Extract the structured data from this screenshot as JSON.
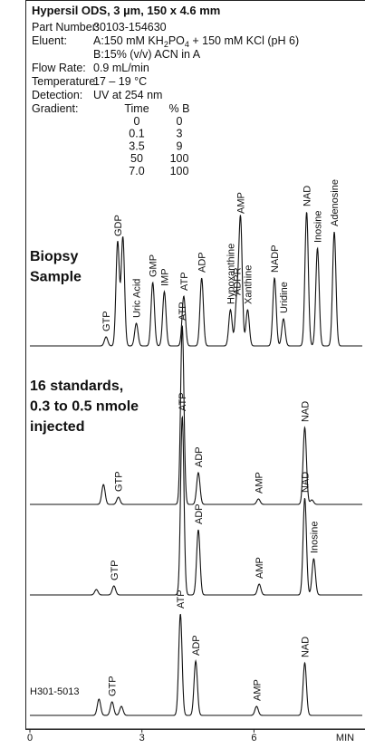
{
  "header": {
    "title": "Hypersil ODS, 3 µm, 150 x 4.6 mm",
    "fields": [
      {
        "label": "Part Number:",
        "lines": [
          [
            {
              "t": "30103-154630"
            }
          ]
        ]
      },
      {
        "label": "Eluent:",
        "lines": [
          [
            {
              "t": "A:150 mM KH"
            },
            {
              "t": "2",
              "sub": true
            },
            {
              "t": "PO"
            },
            {
              "t": "4",
              "sub": true
            },
            {
              "t": " + 150 mM KCl (pH 6)"
            }
          ],
          [
            {
              "t": "B:15% (v/v) ACN in A"
            }
          ]
        ]
      },
      {
        "label": "Flow Rate:",
        "lines": [
          [
            {
              "t": "0.9 mL/min"
            }
          ]
        ]
      },
      {
        "label": "Temperature:",
        "lines": [
          [
            {
              "t": "17 – 19 °C"
            }
          ]
        ]
      },
      {
        "label": "Detection:",
        "lines": [
          [
            {
              "t": "UV at 254 nm"
            }
          ]
        ]
      }
    ],
    "gradient": {
      "label": "Gradient:",
      "columns": [
        "Time",
        "% B"
      ],
      "rows": [
        [
          "0",
          "0"
        ],
        [
          "0.1",
          "3"
        ],
        [
          "3.5",
          "9"
        ],
        [
          "50",
          "100"
        ],
        [
          "7.0",
          "100"
        ]
      ]
    }
  },
  "chart_data": {
    "type": "chromatogram",
    "xlim": [
      0,
      8.9
    ],
    "xticks": [
      0,
      3,
      6
    ],
    "xlabel": "MIN",
    "ylim": [
      0,
      200
    ],
    "panels": [
      {
        "title_lines": [
          "Biopsy",
          "Sample"
        ],
        "peaks": [
          {
            "label": "GTP",
            "time": 2.04,
            "height": 10
          },
          {
            "label": "GDP",
            "time": 2.35,
            "height": 115
          },
          {
            "time": 2.49,
            "height": 120
          },
          {
            "label": "Uric Acid",
            "time": 2.85,
            "height": 25
          },
          {
            "label": "GMP",
            "time": 3.29,
            "height": 70
          },
          {
            "label": "IMP",
            "time": 3.6,
            "height": 60
          },
          {
            "label": "ATP",
            "time": 4.12,
            "height": 55
          },
          {
            "label": "ADP",
            "time": 4.6,
            "height": 75
          },
          {
            "label": "Hypoxanthine",
            "time": 5.37,
            "height": 40
          },
          {
            "label": "ADPR",
            "time": 5.54,
            "height": 50
          },
          {
            "label": "AMP",
            "time": 5.64,
            "height": 140
          },
          {
            "label": "Xanthine",
            "time": 5.83,
            "height": 40
          },
          {
            "label": "NADP",
            "time": 6.55,
            "height": 75
          },
          {
            "label": "Uridine",
            "time": 6.79,
            "height": 30
          },
          {
            "label": "NAD",
            "time": 7.41,
            "height": 148
          },
          {
            "label": "Inosine",
            "time": 7.7,
            "height": 108
          },
          {
            "label": "Adenosine",
            "time": 8.15,
            "height": 126
          }
        ]
      },
      {
        "title_lines": [
          "16 standards,",
          "0.3 to 0.5 nmole",
          "injected"
        ],
        "peaks": [
          {
            "time": 1.97,
            "height": 22
          },
          {
            "label": "GTP",
            "time": 2.37,
            "height": 8
          },
          {
            "label": "ATP",
            "time": 4.08,
            "height": 197
          },
          {
            "label": "ADP",
            "time": 4.51,
            "height": 35
          },
          {
            "label": "AMP",
            "time": 6.12,
            "height": 6
          },
          {
            "label": "NAD",
            "time": 7.36,
            "height": 85
          },
          {
            "time": 7.55,
            "height": 5
          }
        ]
      },
      {
        "peaks": [
          {
            "time": 1.78,
            "height": 6
          },
          {
            "label": "GTP",
            "time": 2.25,
            "height": 10
          },
          {
            "label": "ATP",
            "time": 4.08,
            "height": 197
          },
          {
            "label": "ADP",
            "time": 4.51,
            "height": 72
          },
          {
            "label": "AMP",
            "time": 6.14,
            "height": 12
          },
          {
            "label": "NAD",
            "time": 7.36,
            "height": 107
          },
          {
            "label": "Inosine",
            "time": 7.6,
            "height": 40
          }
        ]
      },
      {
        "note": "H301-5013",
        "peaks": [
          {
            "time": 1.85,
            "height": 18
          },
          {
            "label": "GTP",
            "time": 2.2,
            "height": 15
          },
          {
            "time": 2.45,
            "height": 10
          },
          {
            "label": "ATP",
            "time": 4.03,
            "height": 112
          },
          {
            "label": "ADP",
            "time": 4.44,
            "height": 60
          },
          {
            "label": "AMP",
            "time": 6.07,
            "height": 10
          },
          {
            "label": "NAD",
            "time": 7.36,
            "height": 58
          }
        ]
      }
    ]
  }
}
